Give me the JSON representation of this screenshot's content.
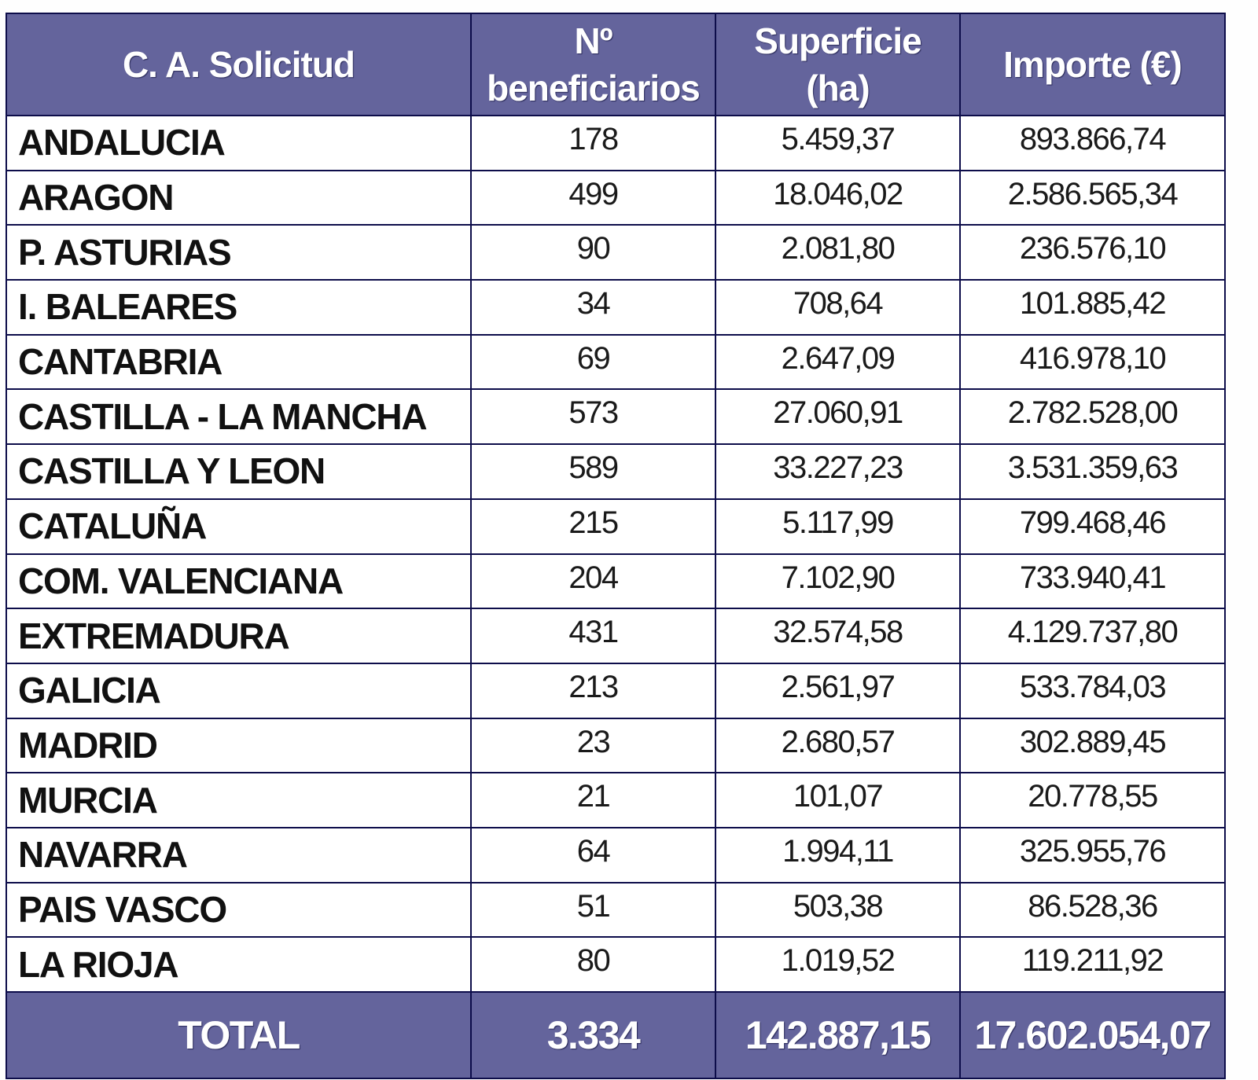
{
  "table": {
    "headers": [
      "C. A. Solicitud",
      "Nº\nbeneficiarios",
      "Superficie\n(ha)",
      "Importe (€)"
    ],
    "header_lines": {
      "col1": [
        "C. A. Solicitud"
      ],
      "col2": [
        "Nº",
        "beneficiarios"
      ],
      "col3": [
        "Superficie",
        "(ha)"
      ],
      "col4": [
        "Importe (€)"
      ]
    },
    "rows": [
      {
        "region": "ANDALUCIA",
        "beneficiarios": "178",
        "superficie": "5.459,37",
        "importe": "893.866,74"
      },
      {
        "region": "ARAGON",
        "beneficiarios": "499",
        "superficie": "18.046,02",
        "importe": "2.586.565,34"
      },
      {
        "region": "P. ASTURIAS",
        "beneficiarios": "90",
        "superficie": "2.081,80",
        "importe": "236.576,10"
      },
      {
        "region": "I. BALEARES",
        "beneficiarios": "34",
        "superficie": "708,64",
        "importe": "101.885,42"
      },
      {
        "region": "CANTABRIA",
        "beneficiarios": "69",
        "superficie": "2.647,09",
        "importe": "416.978,10"
      },
      {
        "region": "CASTILLA - LA MANCHA",
        "beneficiarios": "573",
        "superficie": "27.060,91",
        "importe": "2.782.528,00"
      },
      {
        "region": "CASTILLA Y LEON",
        "beneficiarios": "589",
        "superficie": "33.227,23",
        "importe": "3.531.359,63"
      },
      {
        "region": "CATALUÑA",
        "beneficiarios": "215",
        "superficie": "5.117,99",
        "importe": "799.468,46"
      },
      {
        "region": "COM. VALENCIANA",
        "beneficiarios": "204",
        "superficie": "7.102,90",
        "importe": "733.940,41"
      },
      {
        "region": "EXTREMADURA",
        "beneficiarios": "431",
        "superficie": "32.574,58",
        "importe": "4.129.737,80"
      },
      {
        "region": "GALICIA",
        "beneficiarios": "213",
        "superficie": "2.561,97",
        "importe": "533.784,03"
      },
      {
        "region": "MADRID",
        "beneficiarios": "23",
        "superficie": "2.680,57",
        "importe": "302.889,45"
      },
      {
        "region": "MURCIA",
        "beneficiarios": "21",
        "superficie": "101,07",
        "importe": "20.778,55"
      },
      {
        "region": "NAVARRA",
        "beneficiarios": "64",
        "superficie": "1.994,11",
        "importe": "325.955,76"
      },
      {
        "region": "PAIS VASCO",
        "beneficiarios": "51",
        "superficie": "503,38",
        "importe": "86.528,36"
      },
      {
        "region": "LA RIOJA",
        "beneficiarios": "80",
        "superficie": "1.019,52",
        "importe": "119.211,92"
      }
    ],
    "total": {
      "label": "TOTAL",
      "beneficiarios": "3.334",
      "superficie": "142.887,15",
      "importe": "17.602.054,07"
    }
  },
  "colors": {
    "header_bg": "#64649c",
    "header_text": "#ffffff",
    "border": "#0d0d4a",
    "body_text": "#111111"
  }
}
